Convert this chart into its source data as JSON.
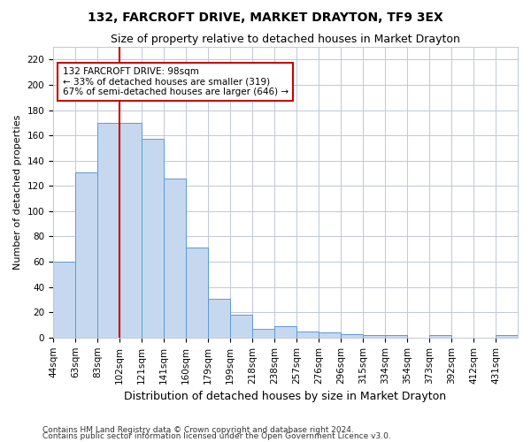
{
  "title": "132, FARCROFT DRIVE, MARKET DRAYTON, TF9 3EX",
  "subtitle": "Size of property relative to detached houses in Market Drayton",
  "xlabel": "Distribution of detached houses by size in Market Drayton",
  "ylabel": "Number of detached properties",
  "categories": [
    "44sqm",
    "63sqm",
    "83sqm",
    "102sqm",
    "121sqm",
    "141sqm",
    "160sqm",
    "179sqm",
    "199sqm",
    "218sqm",
    "238sqm",
    "257sqm",
    "276sqm",
    "296sqm",
    "315sqm",
    "334sqm",
    "354sqm",
    "373sqm",
    "392sqm",
    "412sqm",
    "431sqm"
  ],
  "bar_heights": [
    60,
    131,
    170,
    170,
    157,
    126,
    71,
    31,
    18,
    7,
    9,
    5,
    4,
    3,
    2,
    2,
    0,
    2,
    0,
    0,
    2
  ],
  "bar_color": "#c5d8f0",
  "bar_edge_color": "#5b9bd5",
  "vline_index": 3,
  "vline_color": "#cc0000",
  "annotation_text": "132 FARCROFT DRIVE: 98sqm\n← 33% of detached houses are smaller (319)\n67% of semi-detached houses are larger (646) →",
  "annotation_box_color": "#ffffff",
  "annotation_box_edge": "#cc0000",
  "ylim": [
    0,
    230
  ],
  "yticks": [
    0,
    20,
    40,
    60,
    80,
    100,
    120,
    140,
    160,
    180,
    200,
    220
  ],
  "footer1": "Contains HM Land Registry data © Crown copyright and database right 2024.",
  "footer2": "Contains public sector information licensed under the Open Government Licence v3.0.",
  "background_color": "#ffffff",
  "grid_color": "#c0c8d8",
  "title_fontsize": 10,
  "subtitle_fontsize": 9,
  "ylabel_fontsize": 8,
  "xlabel_fontsize": 9,
  "tick_fontsize": 7.5,
  "footer_fontsize": 6.5
}
